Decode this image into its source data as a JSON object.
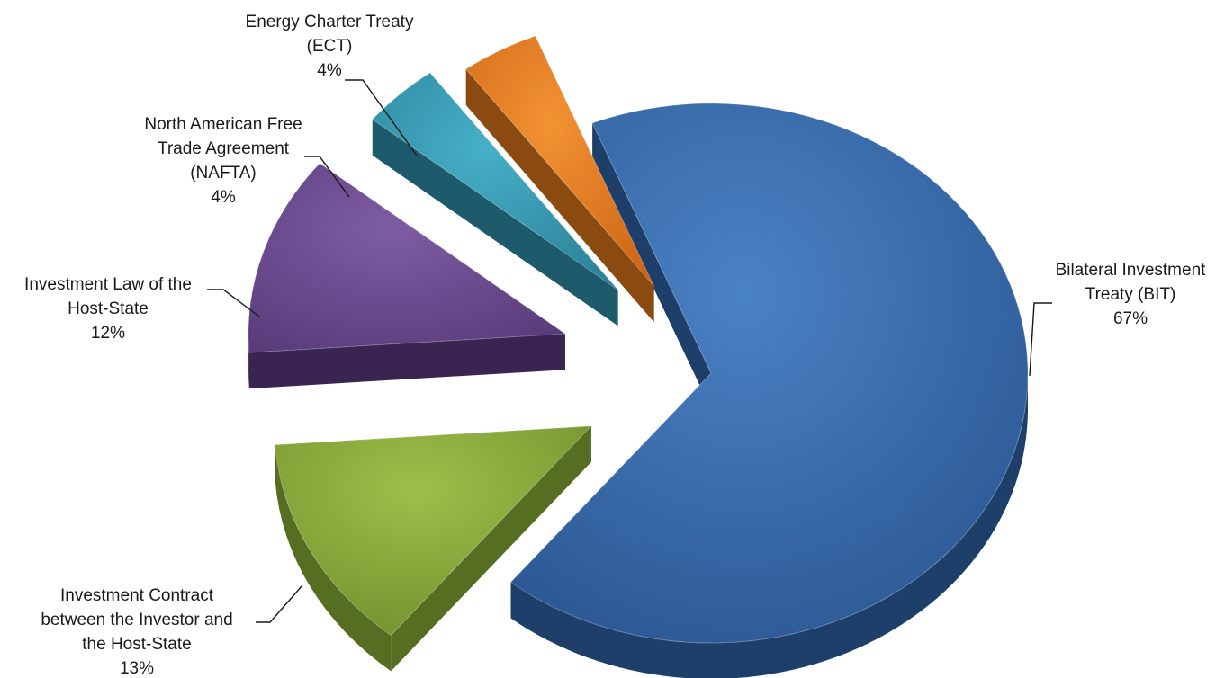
{
  "chart_data": {
    "type": "pie",
    "style": "3d-exploded",
    "title": "",
    "categories": [
      "Bilateral Investment Treaty (BIT)",
      "Investment Contract between the Investor and the Host-State",
      "Investment Law of the Host-State",
      "North American Free Trade Agreement (NAFTA)",
      "Energy Charter Treaty (ECT)"
    ],
    "values": [
      67,
      13,
      12,
      4,
      4
    ],
    "value_labels": [
      "67%",
      "13%",
      "12%",
      "4%",
      "4%"
    ],
    "label_lines": [
      [
        "Bilateral Investment",
        "Treaty (BIT)"
      ],
      [
        "Investment Contract",
        "between the Investor and",
        "the Host-State"
      ],
      [
        "Investment Law of the",
        "Host-State"
      ],
      [
        "North American Free",
        "Trade Agreement",
        "(NAFTA)"
      ],
      [
        "Energy Charter Treaty",
        "(ECT)"
      ]
    ],
    "colors": [
      "#3366a8",
      "#86a83a",
      "#6a4a8e",
      "#3598b2",
      "#e67a22"
    ],
    "legend": "none"
  }
}
